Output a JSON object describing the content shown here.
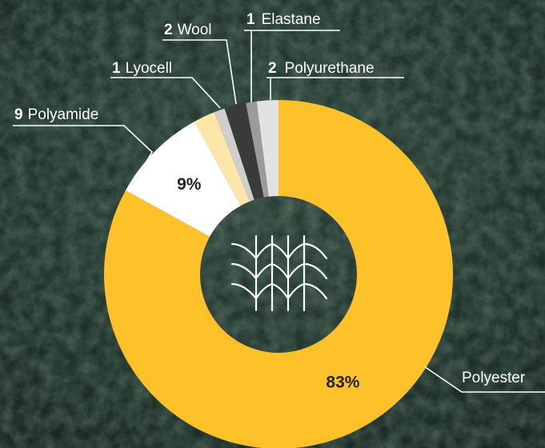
{
  "chart_data": {
    "type": "donut",
    "categories": [
      "Polyester",
      "Polyamide",
      null,
      "Lyocell",
      "Wool",
      "Elastane",
      "Polyurethane"
    ],
    "values": [
      83,
      9,
      2,
      1,
      2,
      1,
      2
    ],
    "value_labels": [
      "83%",
      "9%",
      null,
      null,
      null,
      null,
      null
    ],
    "colors": [
      "#fdc12a",
      "#ffffff",
      "#fde6a8",
      "#cfcfcf",
      "#3a3a3a",
      "#9b9b9b",
      "#e2e2e2"
    ]
  }
}
